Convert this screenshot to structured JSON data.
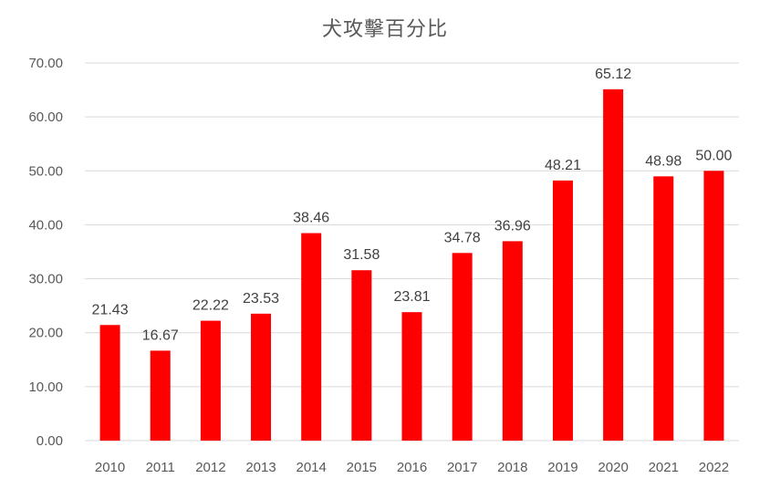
{
  "chart_data": {
    "type": "bar",
    "title": "犬攻擊百分比",
    "xlabel": "",
    "ylabel": "",
    "categories": [
      "2010",
      "2011",
      "2012",
      "2013",
      "2014",
      "2015",
      "2016",
      "2017",
      "2018",
      "2019",
      "2020",
      "2021",
      "2022"
    ],
    "values": [
      21.43,
      16.67,
      22.22,
      23.53,
      38.46,
      31.58,
      23.81,
      34.78,
      36.96,
      48.21,
      65.12,
      48.98,
      50.0
    ],
    "value_labels": [
      "21.43",
      "16.67",
      "22.22",
      "23.53",
      "38.46",
      "31.58",
      "23.81",
      "34.78",
      "36.96",
      "48.21",
      "65.12",
      "48.98",
      "50.00"
    ],
    "y_ticks": [
      "0.00",
      "10.00",
      "20.00",
      "30.00",
      "40.00",
      "50.00",
      "60.00",
      "70.00"
    ],
    "ylim": [
      0,
      70
    ],
    "grid": true,
    "legend": "none",
    "bar_color": "#ff0000"
  }
}
